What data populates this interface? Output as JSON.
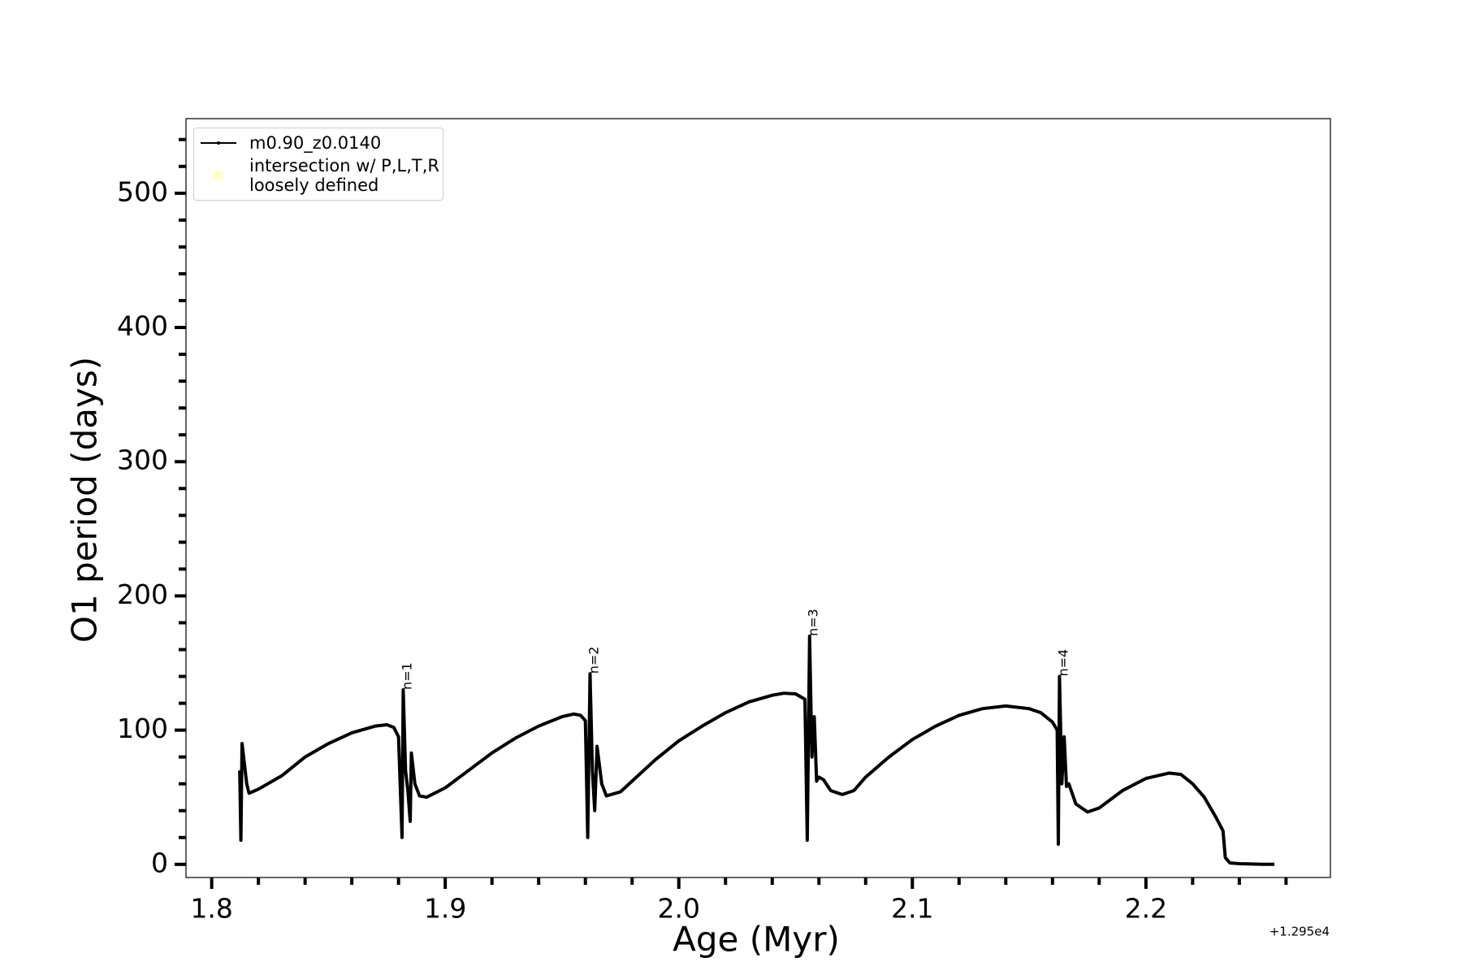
{
  "chart_data": {
    "type": "line",
    "xlabel": "Age (Myr)",
    "ylabel": "O1 period (days)",
    "x_offset_label": "+1.295e4",
    "xlim": [
      1.789,
      2.279
    ],
    "ylim": [
      -9.8,
      555.6
    ],
    "xticks": [
      1.8,
      1.9,
      {
        "value": 2.0,
        "label": "2.0"
      },
      2.1,
      2.2
    ],
    "xminorticks": [
      1.82,
      1.84,
      1.86,
      1.88,
      1.92,
      1.94,
      1.96,
      1.98,
      2.02,
      2.04,
      2.06,
      2.08,
      2.12,
      2.14,
      2.16,
      2.18,
      2.22,
      2.24,
      2.26
    ],
    "yticks": [
      0,
      100,
      200,
      300,
      400,
      500
    ],
    "yminorticks": [
      20,
      40,
      60,
      80,
      120,
      140,
      160,
      180,
      220,
      240,
      260,
      280,
      320,
      340,
      360,
      380,
      420,
      440,
      460,
      480,
      520,
      540
    ],
    "grid": false,
    "legend": "upper left",
    "series": [
      {
        "name": "m0.90_z0.0140",
        "color": "#000000",
        "type": "line",
        "x": [
          1.812,
          1.8125,
          1.813,
          1.815,
          1.816,
          1.82,
          1.83,
          1.84,
          1.85,
          1.86,
          1.87,
          1.875,
          1.878,
          1.88,
          1.8815,
          1.882,
          1.883,
          1.884,
          1.885,
          1.8855,
          1.887,
          1.889,
          1.892,
          1.9,
          1.91,
          1.92,
          1.93,
          1.94,
          1.95,
          1.955,
          1.958,
          1.96,
          1.961,
          1.962,
          1.963,
          1.964,
          1.965,
          1.967,
          1.969,
          1.975,
          1.98,
          1.99,
          2.0,
          2.01,
          2.02,
          2.03,
          2.04,
          2.045,
          2.05,
          2.054,
          2.055,
          2.056,
          2.057,
          2.058,
          2.059,
          2.06,
          2.062,
          2.065,
          2.07,
          2.075,
          2.08,
          2.09,
          2.1,
          2.11,
          2.12,
          2.13,
          2.14,
          2.15,
          2.155,
          2.16,
          2.162,
          2.1625,
          2.163,
          2.164,
          2.165,
          2.166,
          2.167,
          2.17,
          2.175,
          2.18,
          2.19,
          2.2,
          2.21,
          2.215,
          2.22,
          2.225,
          2.23,
          2.233,
          2.234,
          2.236,
          2.24,
          2.25,
          2.255
        ],
        "values": [
          70,
          18,
          90,
          60,
          53,
          56,
          66,
          80,
          90,
          98,
          103,
          104,
          102,
          95,
          20,
          130,
          70,
          55,
          32,
          83,
          60,
          51,
          50,
          57,
          70,
          83,
          94,
          103,
          110,
          112,
          111,
          107,
          20,
          142,
          70,
          40,
          88,
          60,
          51,
          54,
          62,
          78,
          92,
          103,
          113,
          121,
          126,
          127.5,
          127,
          123,
          18,
          170,
          80,
          110,
          62,
          65,
          63,
          55,
          52,
          55,
          65,
          80,
          93,
          103,
          111,
          116,
          118,
          116,
          113,
          106,
          100,
          15,
          140,
          60,
          95,
          58,
          60,
          45,
          39,
          42,
          55,
          64,
          68,
          67,
          60,
          50,
          35,
          25,
          5,
          1,
          0.5,
          0,
          0
        ]
      },
      {
        "name": "intersection w/ P,L,T,R\nloosely defined",
        "color": "#ffffcc",
        "type": "scatter",
        "x": [],
        "values": []
      }
    ],
    "annotations": [
      {
        "text": "n=1",
        "x": 1.882,
        "y": 130
      },
      {
        "text": "n=2",
        "x": 1.962,
        "y": 142
      },
      {
        "text": "n=3",
        "x": 2.056,
        "y": 170
      },
      {
        "text": "n=4",
        "x": 2.163,
        "y": 140
      }
    ]
  }
}
